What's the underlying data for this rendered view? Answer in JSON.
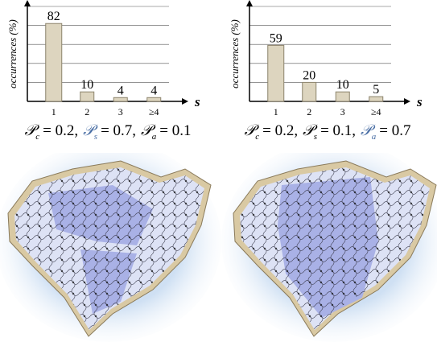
{
  "chart_data": [
    {
      "type": "bar",
      "y_label": "occurrences (%)",
      "x_label": "s",
      "categories": [
        "1",
        "2",
        "3",
        "≥4"
      ],
      "values": [
        82,
        10,
        4,
        4
      ],
      "color": "#ddd5bf",
      "ylim": [
        0,
        100
      ],
      "yticks": [
        20,
        40,
        60,
        80,
        100
      ],
      "grid": true,
      "caption": [
        {
          "symbol": "𝒫",
          "sub": "c",
          "text": "= 0.2,",
          "color": "#000000"
        },
        {
          "symbol": "𝒫",
          "sub": "s",
          "text": "= 0.7,",
          "color": "#4a6fa5"
        },
        {
          "symbol": "𝒫",
          "sub": "a",
          "text": "= 0.1",
          "color": "#000000"
        }
      ]
    },
    {
      "type": "bar",
      "y_label": "occurrences (%)",
      "x_label": "s",
      "categories": [
        "1",
        "2",
        "3",
        "≥4"
      ],
      "values": [
        59,
        20,
        10,
        5
      ],
      "color": "#ddd5bf",
      "ylim": [
        0,
        100
      ],
      "yticks": [
        20,
        40,
        60,
        80,
        100
      ],
      "grid": true,
      "caption": [
        {
          "symbol": "𝒫",
          "sub": "c",
          "text": "= 0.2,",
          "color": "#000000"
        },
        {
          "symbol": "𝒫",
          "sub": "s",
          "text": "= 0.1,",
          "color": "#000000"
        },
        {
          "symbol": "𝒫",
          "sub": "a",
          "text": "= 0.7",
          "color": "#4a6fa5"
        }
      ]
    }
  ]
}
